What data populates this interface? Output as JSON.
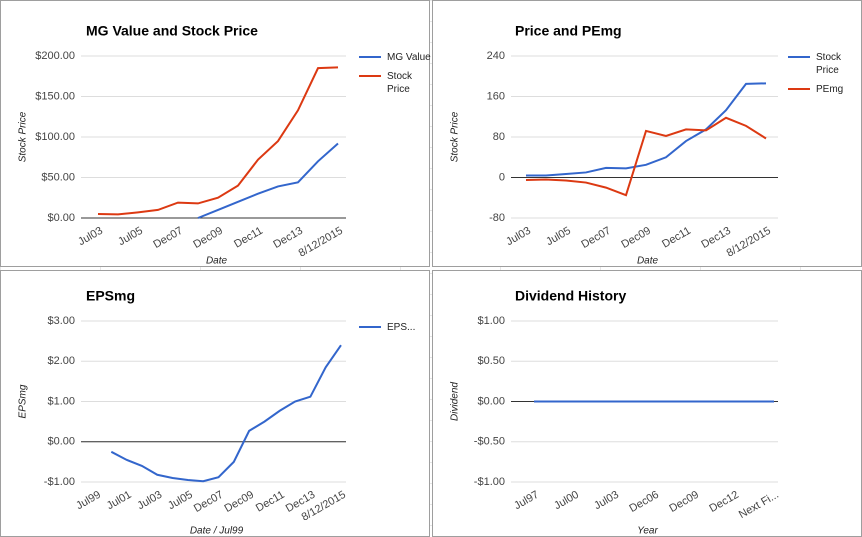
{
  "chart_data": [
    {
      "type": "line",
      "title": "MG Value and Stock Price",
      "ylabel": "Stock Price",
      "xlabel": "Date",
      "categories": [
        "Jul03",
        null,
        "Jul05",
        null,
        "Dec07",
        null,
        "Dec09",
        null,
        "Dec11",
        null,
        "Dec13",
        null,
        "8/12/2015"
      ],
      "series": [
        {
          "name": "MG Value",
          "color": "#3366cc",
          "values": [
            null,
            null,
            null,
            null,
            null,
            0,
            10,
            20,
            30,
            39,
            44,
            70,
            92
          ]
        },
        {
          "name": "Stock Price",
          "color": "#dc3912",
          "values": [
            5,
            4.5,
            7,
            10,
            19,
            18,
            25,
            40,
            72,
            95,
            133,
            185,
            186
          ]
        }
      ],
      "ylim": [
        0,
        200
      ],
      "yticks": [
        {
          "value": 0,
          "label": "$0.00"
        },
        {
          "value": 50,
          "label": "$50.00"
        },
        {
          "value": 100,
          "label": "$100.00"
        },
        {
          "value": 150,
          "label": "$150.00"
        },
        {
          "value": 200,
          "label": "$200.00"
        }
      ],
      "grid": true,
      "legend": "right"
    },
    {
      "type": "line",
      "title": "Price and PEmg",
      "ylabel": "Stock Price",
      "xlabel": "Date",
      "categories": [
        "Jul03",
        null,
        "Jul05",
        null,
        "Dec07",
        null,
        "Dec09",
        null,
        "Dec11",
        null,
        "Dec13",
        null,
        "8/12/2015"
      ],
      "series": [
        {
          "name": "Stock Price",
          "color": "#3366cc",
          "values": [
            4,
            4,
            7,
            10,
            19,
            18,
            25,
            40,
            72,
            95,
            133,
            185,
            186
          ]
        },
        {
          "name": "PEmg",
          "color": "#dc3912",
          "values": [
            -5,
            -4,
            -6,
            -10,
            -20,
            -35,
            92,
            82,
            95,
            93,
            118,
            102,
            77
          ]
        }
      ],
      "ylim": [
        -80,
        240
      ],
      "yticks": [
        -80,
        0,
        80,
        160,
        240
      ],
      "grid": true,
      "legend": "right"
    },
    {
      "type": "line",
      "title": "EPSmg",
      "ylabel": "EPSmg",
      "xlabel": "Date / Jul99",
      "categories": [
        "Jul99",
        null,
        "Jul01",
        null,
        "Jul03",
        null,
        "Jul05",
        null,
        "Dec07",
        null,
        "Dec09",
        null,
        "Dec11",
        null,
        "Dec13",
        null,
        "8/12/2015"
      ],
      "series": [
        {
          "name": "EPS...",
          "color": "#3366cc",
          "values": [
            null,
            -0.25,
            -0.45,
            -0.6,
            -0.82,
            -0.9,
            -0.95,
            -0.98,
            -0.88,
            -0.5,
            0.27,
            0.5,
            0.77,
            1.0,
            1.12,
            1.85,
            2.4
          ]
        }
      ],
      "ylim": [
        -1,
        3
      ],
      "yticks": [
        {
          "value": -1,
          "label": "-$1.00"
        },
        {
          "value": 0,
          "label": "$0.00"
        },
        {
          "value": 1,
          "label": "$1.00"
        },
        {
          "value": 2,
          "label": "$2.00"
        },
        {
          "value": 3,
          "label": "$3.00"
        }
      ],
      "grid": true,
      "legend": "right"
    },
    {
      "type": "line",
      "title": "Dividend History",
      "ylabel": "Dividend",
      "xlabel": "Year",
      "categories": [
        "Jul97",
        "Jul00",
        "Jul03",
        "Dec06",
        "Dec09",
        "Dec12",
        "Next Fi..."
      ],
      "values": [
        0,
        0,
        0,
        0,
        0,
        0,
        0
      ],
      "color": "#3366cc",
      "ylim": [
        -1,
        1
      ],
      "yticks": [
        {
          "value": -1,
          "label": "-$1.00"
        },
        {
          "value": -0.5,
          "label": "-$0.50"
        },
        {
          "value": 0,
          "label": "$0.00"
        },
        {
          "value": 0.5,
          "label": "$0.50"
        },
        {
          "value": 1,
          "label": "$1.00"
        }
      ],
      "grid": true
    }
  ]
}
